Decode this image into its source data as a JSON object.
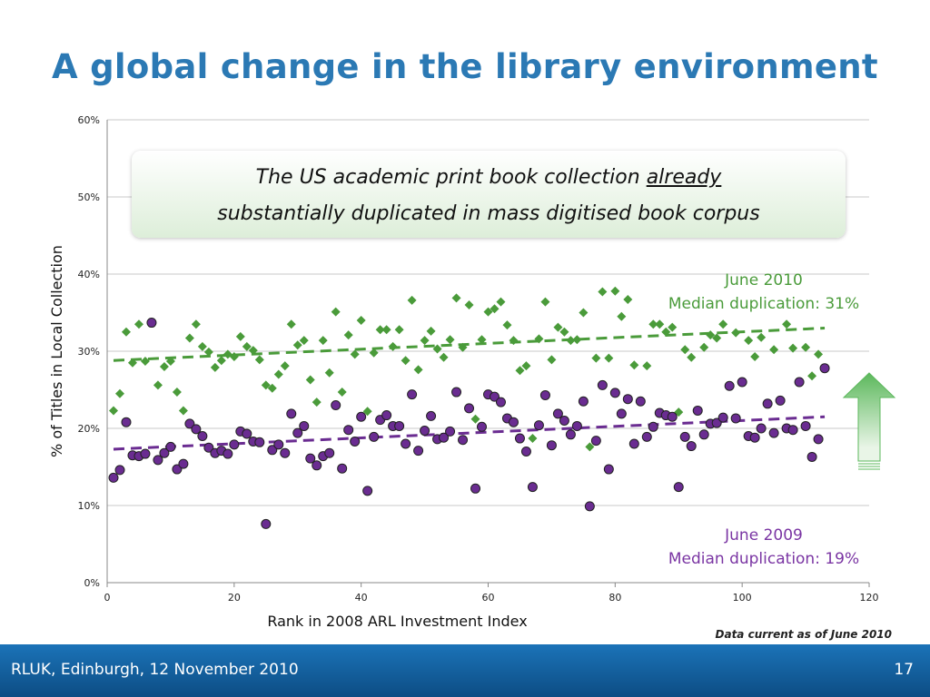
{
  "slide": {
    "title": "A global change in the library environment",
    "callout": {
      "line1_pre": "The US academic print book collection ",
      "line1_underlined": "already",
      "line2": "substantially duplicated in mass digitised book corpus"
    },
    "annotation_2010": {
      "line1": "June 2010",
      "line2": "Median duplication: 31%"
    },
    "annotation_2009": {
      "line1": "June 2009",
      "line2": "Median duplication: 19%"
    },
    "note": "Data current as of June 2010",
    "footer": {
      "left": "RLUK, Edinburgh, 12 November 2010",
      "right": "17"
    }
  },
  "colors": {
    "title": "#2b79b4",
    "series_2010": "#4a9b3a",
    "series_2009": "#6a2c91",
    "arrow": "#5cb85c",
    "footer": "#1b73b8"
  },
  "chart_data": {
    "type": "scatter",
    "xlabel": "Rank in 2008 ARL Investment Index",
    "ylabel": "% of Titles in Local Collection",
    "xlim": [
      0,
      120
    ],
    "ylim": [
      0,
      60
    ],
    "x_ticks": [
      0,
      20,
      40,
      60,
      80,
      100,
      120
    ],
    "y_ticks": [
      0,
      10,
      20,
      30,
      40,
      50,
      60
    ],
    "y_tick_labels": [
      "0%",
      "10%",
      "20%",
      "30%",
      "40%",
      "50%",
      "60%"
    ],
    "grid": "horizontal",
    "series": [
      {
        "marker": "diamond",
        "trendline": [
          [
            1,
            28.8
          ],
          [
            113,
            33.0
          ]
        ],
        "points": [
          [
            1,
            22.3
          ],
          [
            2,
            24.5
          ],
          [
            3,
            32.5
          ],
          [
            4,
            28.5
          ],
          [
            5,
            33.5
          ],
          [
            6,
            28.7
          ],
          [
            8,
            25.6
          ],
          [
            9,
            28.0
          ],
          [
            10,
            28.7
          ],
          [
            11,
            24.7
          ],
          [
            12,
            22.3
          ],
          [
            13,
            31.7
          ],
          [
            14,
            33.5
          ],
          [
            15,
            30.6
          ],
          [
            16,
            29.9
          ],
          [
            17,
            27.9
          ],
          [
            18,
            28.8
          ],
          [
            19,
            29.6
          ],
          [
            20,
            29.3
          ],
          [
            21,
            31.9
          ],
          [
            22,
            30.6
          ],
          [
            23,
            30.1
          ],
          [
            24,
            28.9
          ],
          [
            25,
            25.6
          ],
          [
            26,
            25.2
          ],
          [
            27,
            27.0
          ],
          [
            28,
            28.1
          ],
          [
            29,
            33.5
          ],
          [
            30,
            30.8
          ],
          [
            31,
            31.4
          ],
          [
            32,
            26.3
          ],
          [
            33,
            23.4
          ],
          [
            34,
            31.4
          ],
          [
            35,
            27.2
          ],
          [
            36,
            35.1
          ],
          [
            37,
            24.7
          ],
          [
            38,
            32.1
          ],
          [
            39,
            29.6
          ],
          [
            40,
            34.0
          ],
          [
            41,
            22.2
          ],
          [
            42,
            29.8
          ],
          [
            43,
            32.8
          ],
          [
            44,
            32.8
          ],
          [
            45,
            30.6
          ],
          [
            46,
            32.8
          ],
          [
            47,
            28.8
          ],
          [
            48,
            36.6
          ],
          [
            49,
            27.6
          ],
          [
            50,
            31.4
          ],
          [
            51,
            32.6
          ],
          [
            52,
            30.3
          ],
          [
            53,
            29.2
          ],
          [
            54,
            31.5
          ],
          [
            55,
            36.9
          ],
          [
            56,
            30.5
          ],
          [
            57,
            36.0
          ],
          [
            58,
            21.2
          ],
          [
            59,
            31.5
          ],
          [
            60,
            35.1
          ],
          [
            61,
            35.5
          ],
          [
            62,
            36.4
          ],
          [
            63,
            33.4
          ],
          [
            64,
            31.4
          ],
          [
            65,
            27.5
          ],
          [
            66,
            28.1
          ],
          [
            67,
            18.7
          ],
          [
            68,
            31.6
          ],
          [
            69,
            36.4
          ],
          [
            70,
            28.9
          ],
          [
            71,
            33.1
          ],
          [
            72,
            32.5
          ],
          [
            73,
            31.4
          ],
          [
            74,
            31.5
          ],
          [
            75,
            35.0
          ],
          [
            76,
            17.6
          ],
          [
            77,
            29.1
          ],
          [
            78,
            37.7
          ],
          [
            79,
            29.1
          ],
          [
            80,
            37.8
          ],
          [
            81,
            34.5
          ],
          [
            82,
            36.7
          ],
          [
            83,
            28.2
          ],
          [
            85,
            28.1
          ],
          [
            86,
            33.5
          ],
          [
            87,
            33.5
          ],
          [
            88,
            32.5
          ],
          [
            89,
            33.1
          ],
          [
            90,
            22.1
          ],
          [
            91,
            30.2
          ],
          [
            92,
            29.2
          ],
          [
            94,
            30.5
          ],
          [
            95,
            32.1
          ],
          [
            96,
            31.7
          ],
          [
            97,
            33.5
          ],
          [
            99,
            32.4
          ],
          [
            101,
            31.4
          ],
          [
            102,
            29.3
          ],
          [
            103,
            31.8
          ],
          [
            105,
            30.2
          ],
          [
            107,
            33.5
          ],
          [
            108,
            30.4
          ],
          [
            110,
            30.5
          ],
          [
            111,
            26.8
          ],
          [
            112,
            29.6
          ]
        ]
      },
      {
        "marker": "circle",
        "trendline": [
          [
            1,
            17.3
          ],
          [
            113,
            21.5
          ]
        ],
        "points": [
          [
            1,
            13.6
          ],
          [
            2,
            14.6
          ],
          [
            3,
            20.8
          ],
          [
            4,
            16.5
          ],
          [
            5,
            16.4
          ],
          [
            6,
            16.7
          ],
          [
            7,
            33.7
          ],
          [
            8,
            15.9
          ],
          [
            9,
            16.8
          ],
          [
            10,
            17.6
          ],
          [
            11,
            14.7
          ],
          [
            12,
            15.4
          ],
          [
            13,
            20.6
          ],
          [
            14,
            19.9
          ],
          [
            15,
            19.0
          ],
          [
            16,
            17.5
          ],
          [
            17,
            16.8
          ],
          [
            18,
            17.1
          ],
          [
            19,
            16.7
          ],
          [
            20,
            17.9
          ],
          [
            21,
            19.6
          ],
          [
            22,
            19.3
          ],
          [
            23,
            18.3
          ],
          [
            24,
            18.2
          ],
          [
            25,
            7.6
          ],
          [
            26,
            17.2
          ],
          [
            27,
            17.9
          ],
          [
            28,
            16.8
          ],
          [
            29,
            21.9
          ],
          [
            30,
            19.4
          ],
          [
            31,
            20.3
          ],
          [
            32,
            16.1
          ],
          [
            33,
            15.2
          ],
          [
            34,
            16.4
          ],
          [
            35,
            16.8
          ],
          [
            36,
            23.0
          ],
          [
            37,
            14.8
          ],
          [
            38,
            19.8
          ],
          [
            39,
            18.3
          ],
          [
            40,
            21.5
          ],
          [
            41,
            11.9
          ],
          [
            42,
            18.9
          ],
          [
            43,
            21.1
          ],
          [
            44,
            21.7
          ],
          [
            45,
            20.3
          ],
          [
            46,
            20.3
          ],
          [
            47,
            18.0
          ],
          [
            48,
            24.4
          ],
          [
            49,
            17.1
          ],
          [
            50,
            19.7
          ],
          [
            51,
            21.6
          ],
          [
            52,
            18.6
          ],
          [
            53,
            18.8
          ],
          [
            54,
            19.6
          ],
          [
            55,
            24.7
          ],
          [
            56,
            18.5
          ],
          [
            57,
            22.6
          ],
          [
            58,
            12.2
          ],
          [
            59,
            20.2
          ],
          [
            60,
            24.4
          ],
          [
            61,
            24.1
          ],
          [
            62,
            23.4
          ],
          [
            63,
            21.3
          ],
          [
            64,
            20.8
          ],
          [
            65,
            18.7
          ],
          [
            66,
            17.0
          ],
          [
            67,
            12.4
          ],
          [
            68,
            20.4
          ],
          [
            69,
            24.3
          ],
          [
            70,
            17.8
          ],
          [
            71,
            21.9
          ],
          [
            72,
            21.0
          ],
          [
            73,
            19.2
          ],
          [
            74,
            20.3
          ],
          [
            75,
            23.5
          ],
          [
            76,
            9.9
          ],
          [
            77,
            18.4
          ],
          [
            78,
            25.6
          ],
          [
            79,
            14.7
          ],
          [
            80,
            24.6
          ],
          [
            81,
            21.9
          ],
          [
            82,
            23.8
          ],
          [
            83,
            18.0
          ],
          [
            84,
            23.5
          ],
          [
            85,
            18.9
          ],
          [
            86,
            20.2
          ],
          [
            87,
            22.0
          ],
          [
            88,
            21.7
          ],
          [
            89,
            21.5
          ],
          [
            90,
            12.4
          ],
          [
            91,
            18.9
          ],
          [
            92,
            17.7
          ],
          [
            93,
            22.3
          ],
          [
            94,
            19.2
          ],
          [
            95,
            20.6
          ],
          [
            96,
            20.7
          ],
          [
            97,
            21.4
          ],
          [
            98,
            25.5
          ],
          [
            99,
            21.3
          ],
          [
            100,
            26.0
          ],
          [
            101,
            19.0
          ],
          [
            102,
            18.8
          ],
          [
            103,
            20.0
          ],
          [
            104,
            23.2
          ],
          [
            105,
            19.4
          ],
          [
            106,
            23.6
          ],
          [
            107,
            20.0
          ],
          [
            108,
            19.8
          ],
          [
            109,
            26.0
          ],
          [
            110,
            20.3
          ],
          [
            111,
            16.3
          ],
          [
            112,
            18.6
          ],
          [
            113,
            27.8
          ]
        ]
      }
    ]
  }
}
